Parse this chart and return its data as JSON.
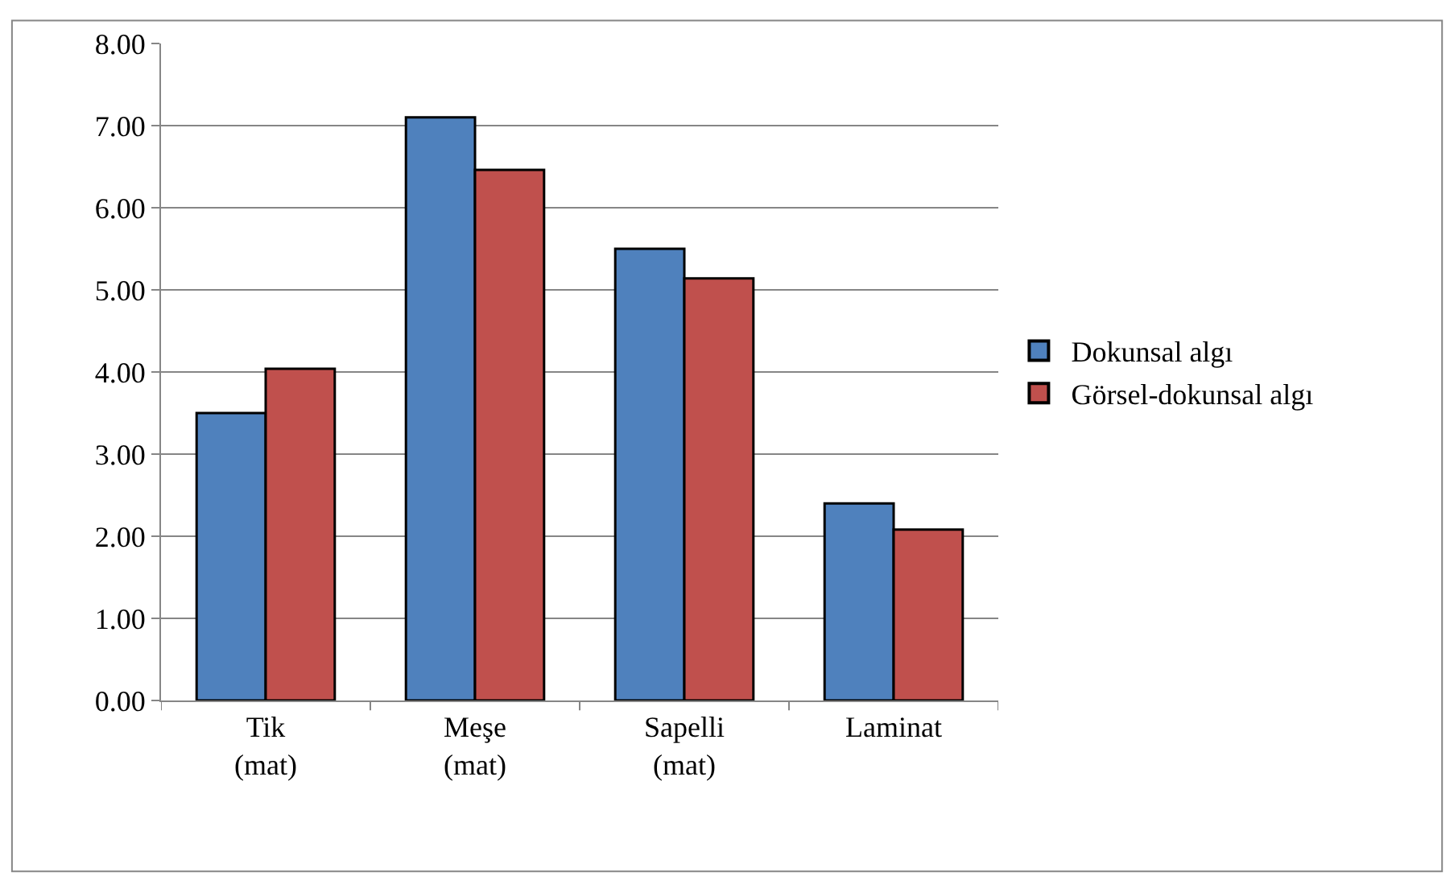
{
  "chart_data": {
    "type": "bar",
    "categories": [
      "Tik (mat)",
      "Meşe (mat)",
      "Sapelli (mat)",
      "Laminat"
    ],
    "series": [
      {
        "name": "Dokunsal algı",
        "color": "#4f81bd",
        "values": [
          3.5,
          7.1,
          5.5,
          2.4
        ]
      },
      {
        "name": "Görsel-dokunsal algı",
        "color": "#c0504d",
        "values": [
          4.04,
          6.46,
          5.14,
          2.08
        ]
      }
    ],
    "ylim": [
      0,
      8
    ],
    "yticks": [
      {
        "value": 0,
        "label": "0.00"
      },
      {
        "value": 1,
        "label": "1.00"
      },
      {
        "value": 2,
        "label": "2.00"
      },
      {
        "value": 3,
        "label": "3.00"
      },
      {
        "value": 4,
        "label": "4.00"
      },
      {
        "value": 5,
        "label": "5.00"
      },
      {
        "value": 6,
        "label": "6.00"
      },
      {
        "value": 7,
        "label": "7.00"
      },
      {
        "value": 8,
        "label": "8.00"
      }
    ],
    "grid": "y",
    "legend": "right"
  }
}
